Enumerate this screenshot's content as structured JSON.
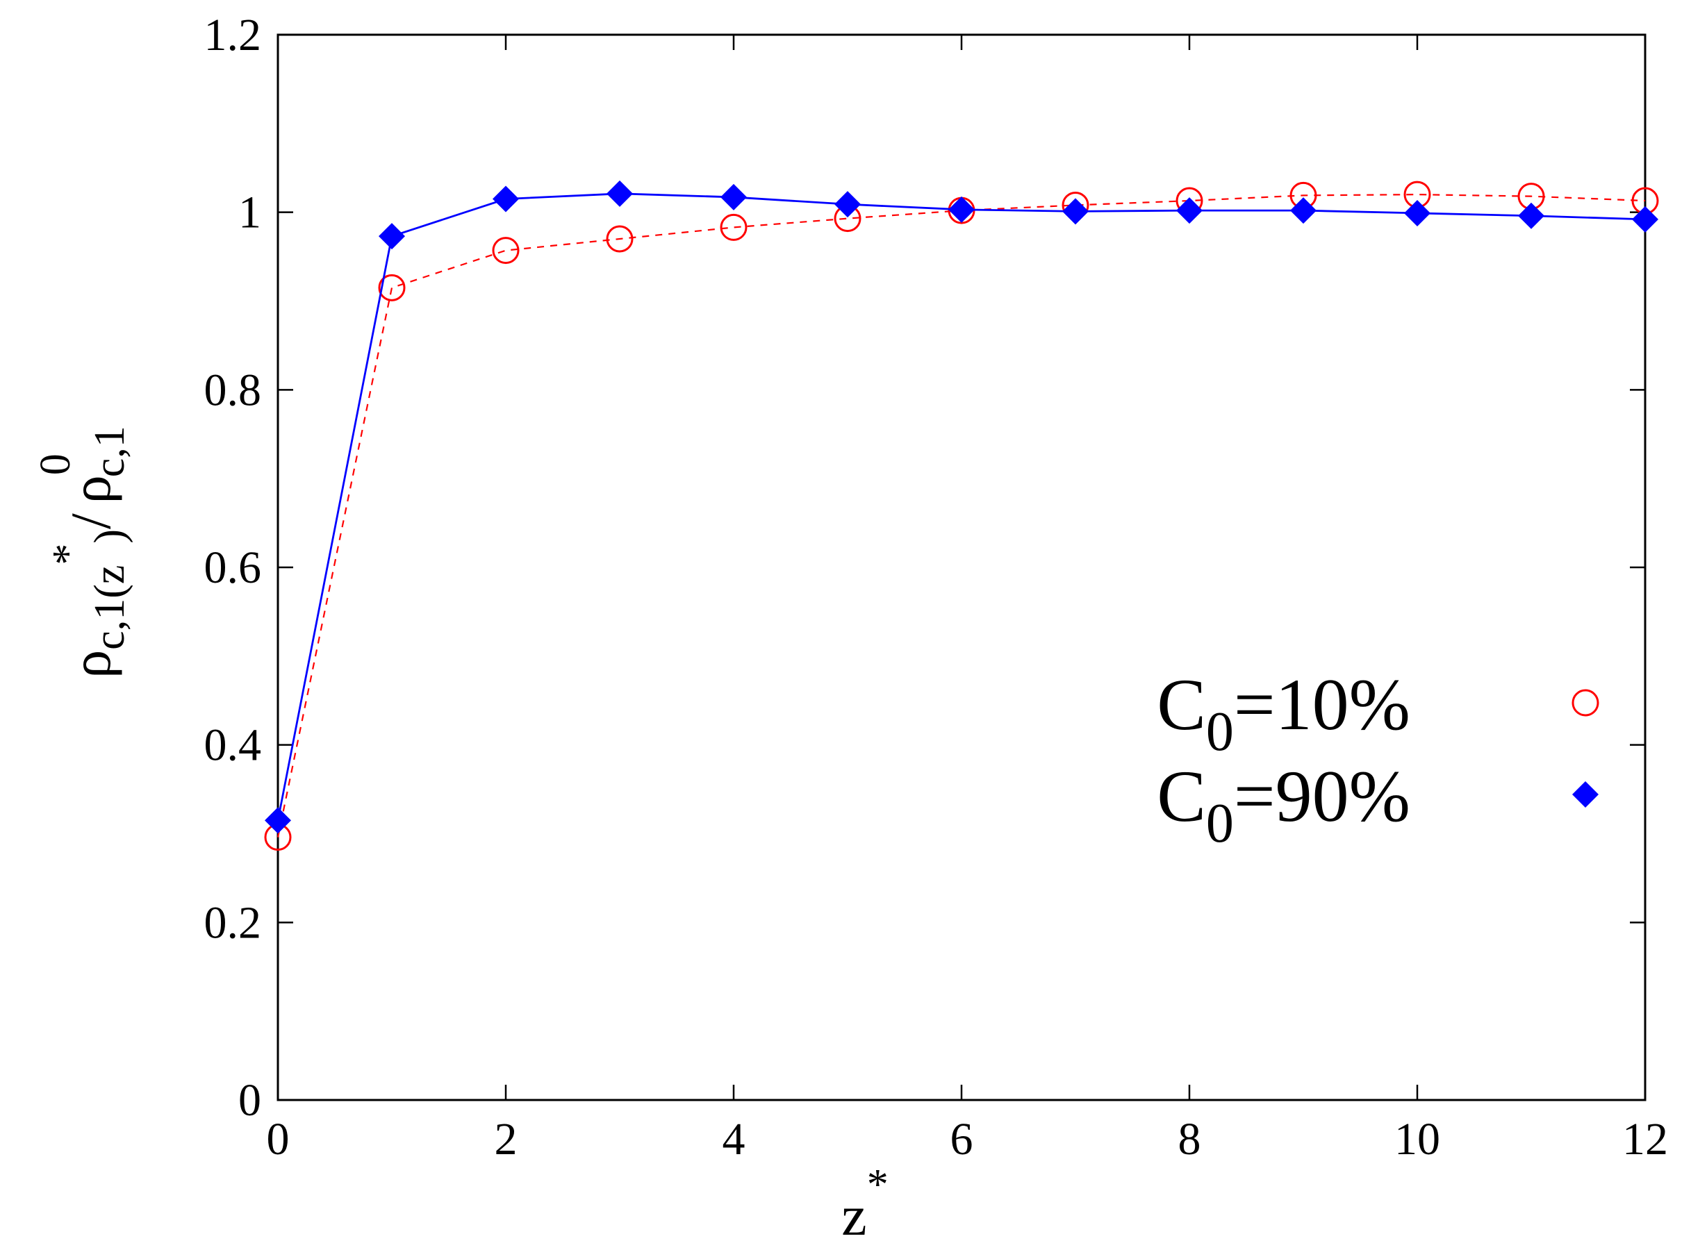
{
  "chart_data": {
    "type": "line",
    "xlabel": {
      "base": "z",
      "sup": "*"
    },
    "ylabel": {
      "num_base": "ρ",
      "num_sub": "c,1(z",
      "num_sup": "*",
      "num_close": ")",
      "slash": "/",
      "den_base": "ρ",
      "den_sup": "0",
      "den_sub": "c,1"
    },
    "xlim": [
      0,
      12
    ],
    "ylim": [
      0,
      1.2
    ],
    "xticks": [
      0,
      2,
      4,
      6,
      8,
      10,
      12
    ],
    "yticks": [
      0,
      0.2,
      0.4,
      0.6,
      0.8,
      1,
      1.2
    ],
    "xtick_labels": [
      "0",
      "2",
      "4",
      "6",
      "8",
      "10",
      "12"
    ],
    "ytick_labels": [
      "0",
      "0.2",
      "0.4",
      "0.6",
      "0.8",
      "1",
      "1.2"
    ],
    "grid": false,
    "legend_position": "right",
    "series": [
      {
        "name": "C0=10%",
        "label_base": "C",
        "label_sub": "0",
        "label_rest": "=10%",
        "color": "#ff0000",
        "marker": "open-circle",
        "line_style": "dashed",
        "x": [
          0,
          1,
          2,
          3,
          4,
          5,
          6,
          7,
          8,
          9,
          10,
          11,
          12
        ],
        "y": [
          0.296,
          0.915,
          0.957,
          0.97,
          0.983,
          0.993,
          1.002,
          1.008,
          1.013,
          1.019,
          1.02,
          1.018,
          1.013
        ]
      },
      {
        "name": "C0=90%",
        "label_base": "C",
        "label_sub": "0",
        "label_rest": "=90%",
        "color": "#0000ff",
        "marker": "filled-diamond",
        "line_style": "solid",
        "x": [
          0,
          1,
          2,
          3,
          4,
          5,
          6,
          7,
          8,
          9,
          10,
          11,
          12
        ],
        "y": [
          0.315,
          0.973,
          1.015,
          1.021,
          1.017,
          1.009,
          1.003,
          1.001,
          1.002,
          1.002,
          0.999,
          0.996,
          0.992
        ]
      }
    ]
  }
}
